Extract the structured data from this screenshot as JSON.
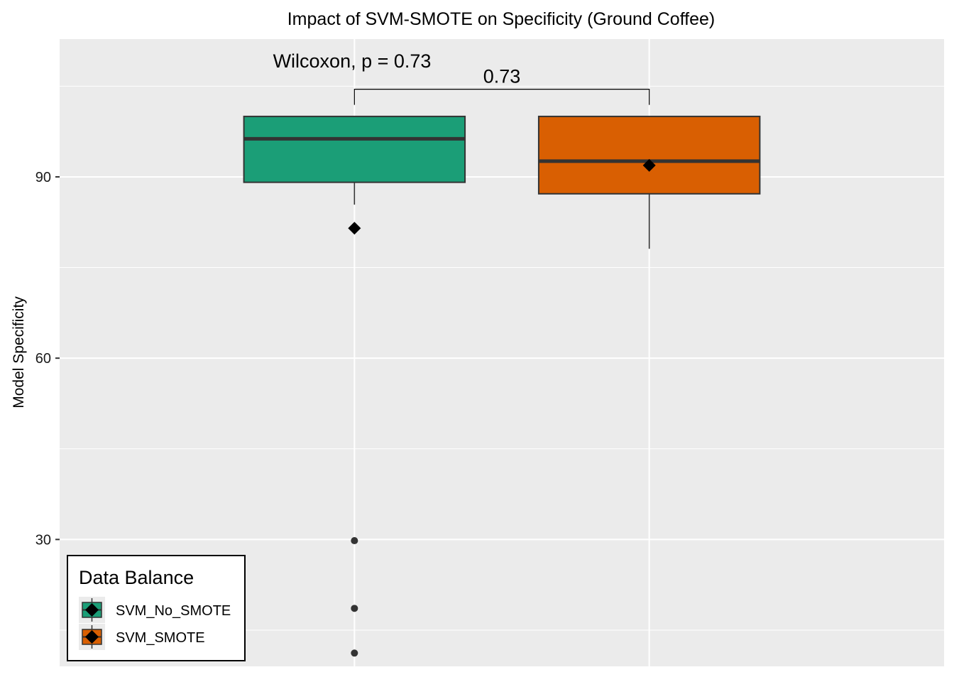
{
  "chart_data": {
    "type": "box",
    "title": "Impact of SVM-SMOTE on Specificity (Ground Coffee)",
    "xlabel": "",
    "ylabel": "Model Specificity",
    "ylim": [
      9.0,
      112.8
    ],
    "y_ticks": [
      30,
      60,
      90
    ],
    "grid": true,
    "categories": [
      "SVM_No_SMOTE",
      "SVM_SMOTE"
    ],
    "series": [
      {
        "name": "SVM_No_SMOTE",
        "color": "#1b9e77",
        "q1": 89.1,
        "median": 96.3,
        "q3": 100.0,
        "whisker_low": 85.4,
        "whisker_high": 100.0,
        "mean": 81.5,
        "outliers": [
          29.8,
          18.6,
          11.2
        ]
      },
      {
        "name": "SVM_SMOTE",
        "color": "#d95f02",
        "q1": 87.2,
        "median": 92.6,
        "q3": 100.0,
        "whisker_low": 78.1,
        "whisker_high": 100.0,
        "mean": 91.9,
        "outliers": []
      }
    ],
    "annotations": {
      "test_label": "Wilcoxon, p = 0.73",
      "bracket_label": "0.73",
      "bracket_y": 104.5
    },
    "legend": {
      "title": "Data Balance",
      "position": "bottom-left",
      "entries": [
        "SVM_No_SMOTE",
        "SVM_SMOTE"
      ]
    }
  }
}
